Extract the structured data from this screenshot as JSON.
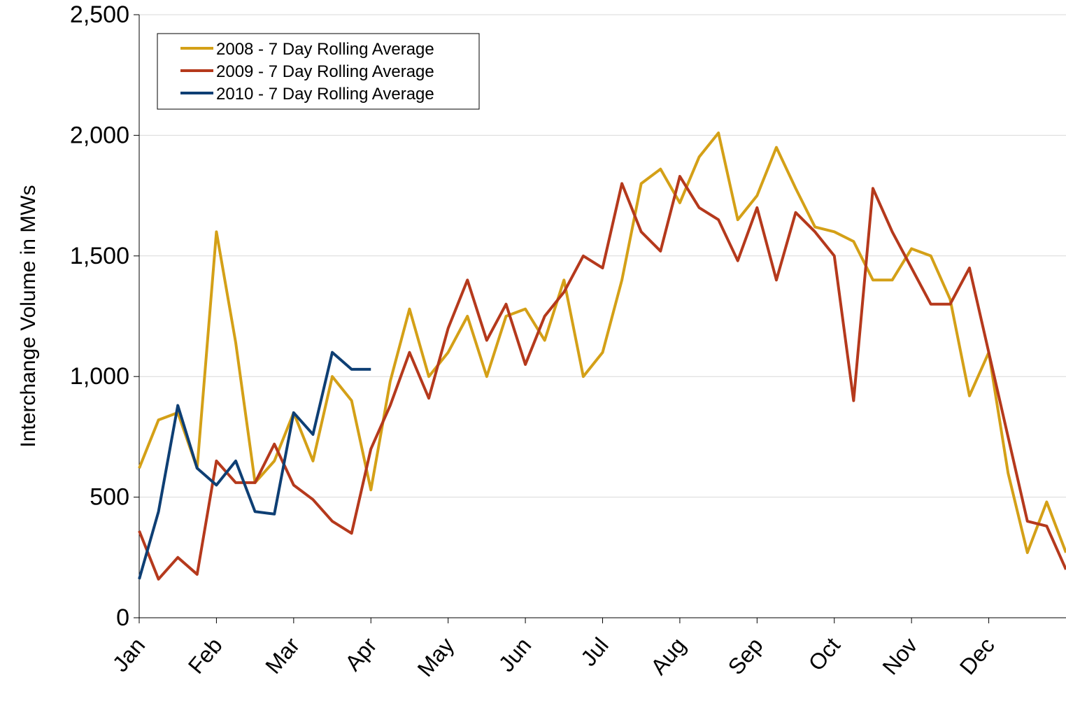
{
  "chart_data": {
    "type": "line",
    "y_label": "Interchange Volume in MWs",
    "categories": [
      "Jan",
      null,
      null,
      null,
      "Feb",
      null,
      null,
      null,
      "Mar",
      null,
      null,
      null,
      "Apr",
      null,
      null,
      null,
      "May",
      null,
      null,
      null,
      "Jun",
      null,
      null,
      null,
      "Jul",
      null,
      null,
      null,
      "Aug",
      null,
      null,
      null,
      "Sep",
      null,
      null,
      null,
      "Oct",
      null,
      null,
      null,
      "Nov",
      null,
      null,
      null,
      "Dec",
      null,
      null,
      null,
      null
    ],
    "series": [
      {
        "name": "2008 - 7 Day Rolling Average",
        "color": "#d4a017",
        "values": [
          620,
          820,
          850,
          620,
          1600,
          1140,
          560,
          650,
          850,
          650,
          1000,
          900,
          530,
          980,
          1280,
          1000,
          1100,
          1250,
          1000,
          1250,
          1280,
          1150,
          1400,
          1000,
          1100,
          1400,
          1800,
          1860,
          1720,
          1910,
          2010,
          1650,
          1750,
          1950,
          1780,
          1620,
          1600,
          1560,
          1400,
          1400,
          1530,
          1500,
          1320,
          920,
          1100,
          600,
          270,
          480,
          270
        ]
      },
      {
        "name": "2009 - 7 Day Rolling Average",
        "color": "#b5391c",
        "values": [
          360,
          160,
          250,
          180,
          650,
          560,
          560,
          720,
          550,
          490,
          400,
          350,
          700,
          880,
          1100,
          910,
          1200,
          1400,
          1150,
          1300,
          1050,
          1250,
          1350,
          1500,
          1450,
          1800,
          1600,
          1520,
          1830,
          1700,
          1650,
          1480,
          1700,
          1400,
          1680,
          1600,
          1500,
          900,
          1780,
          1600,
          1450,
          1300,
          1300,
          1450,
          1100,
          750,
          400,
          380,
          200
        ]
      },
      {
        "name": "2010 - 7 Day Rolling Average",
        "color": "#0e3f74",
        "values": [
          160,
          440,
          880,
          620,
          550,
          650,
          440,
          430,
          850,
          760,
          1100,
          1030,
          1030,
          null,
          null,
          null,
          null,
          null,
          null,
          null,
          null,
          null,
          null,
          null,
          null,
          null,
          null,
          null,
          null,
          null,
          null,
          null,
          null,
          null,
          null,
          null,
          null,
          null,
          null,
          null,
          null,
          null,
          null,
          null,
          null,
          null,
          null,
          null,
          null
        ]
      }
    ],
    "ylim": [
      0,
      2500
    ],
    "yticks": [
      0,
      500,
      {
        "value": 1000,
        "label": "1,000"
      },
      {
        "value": 1500,
        "label": "1,500"
      },
      {
        "value": 2000,
        "label": "2,000"
      },
      {
        "value": 2500,
        "label": "2,500"
      }
    ],
    "grid": true,
    "legend": "upper left"
  }
}
